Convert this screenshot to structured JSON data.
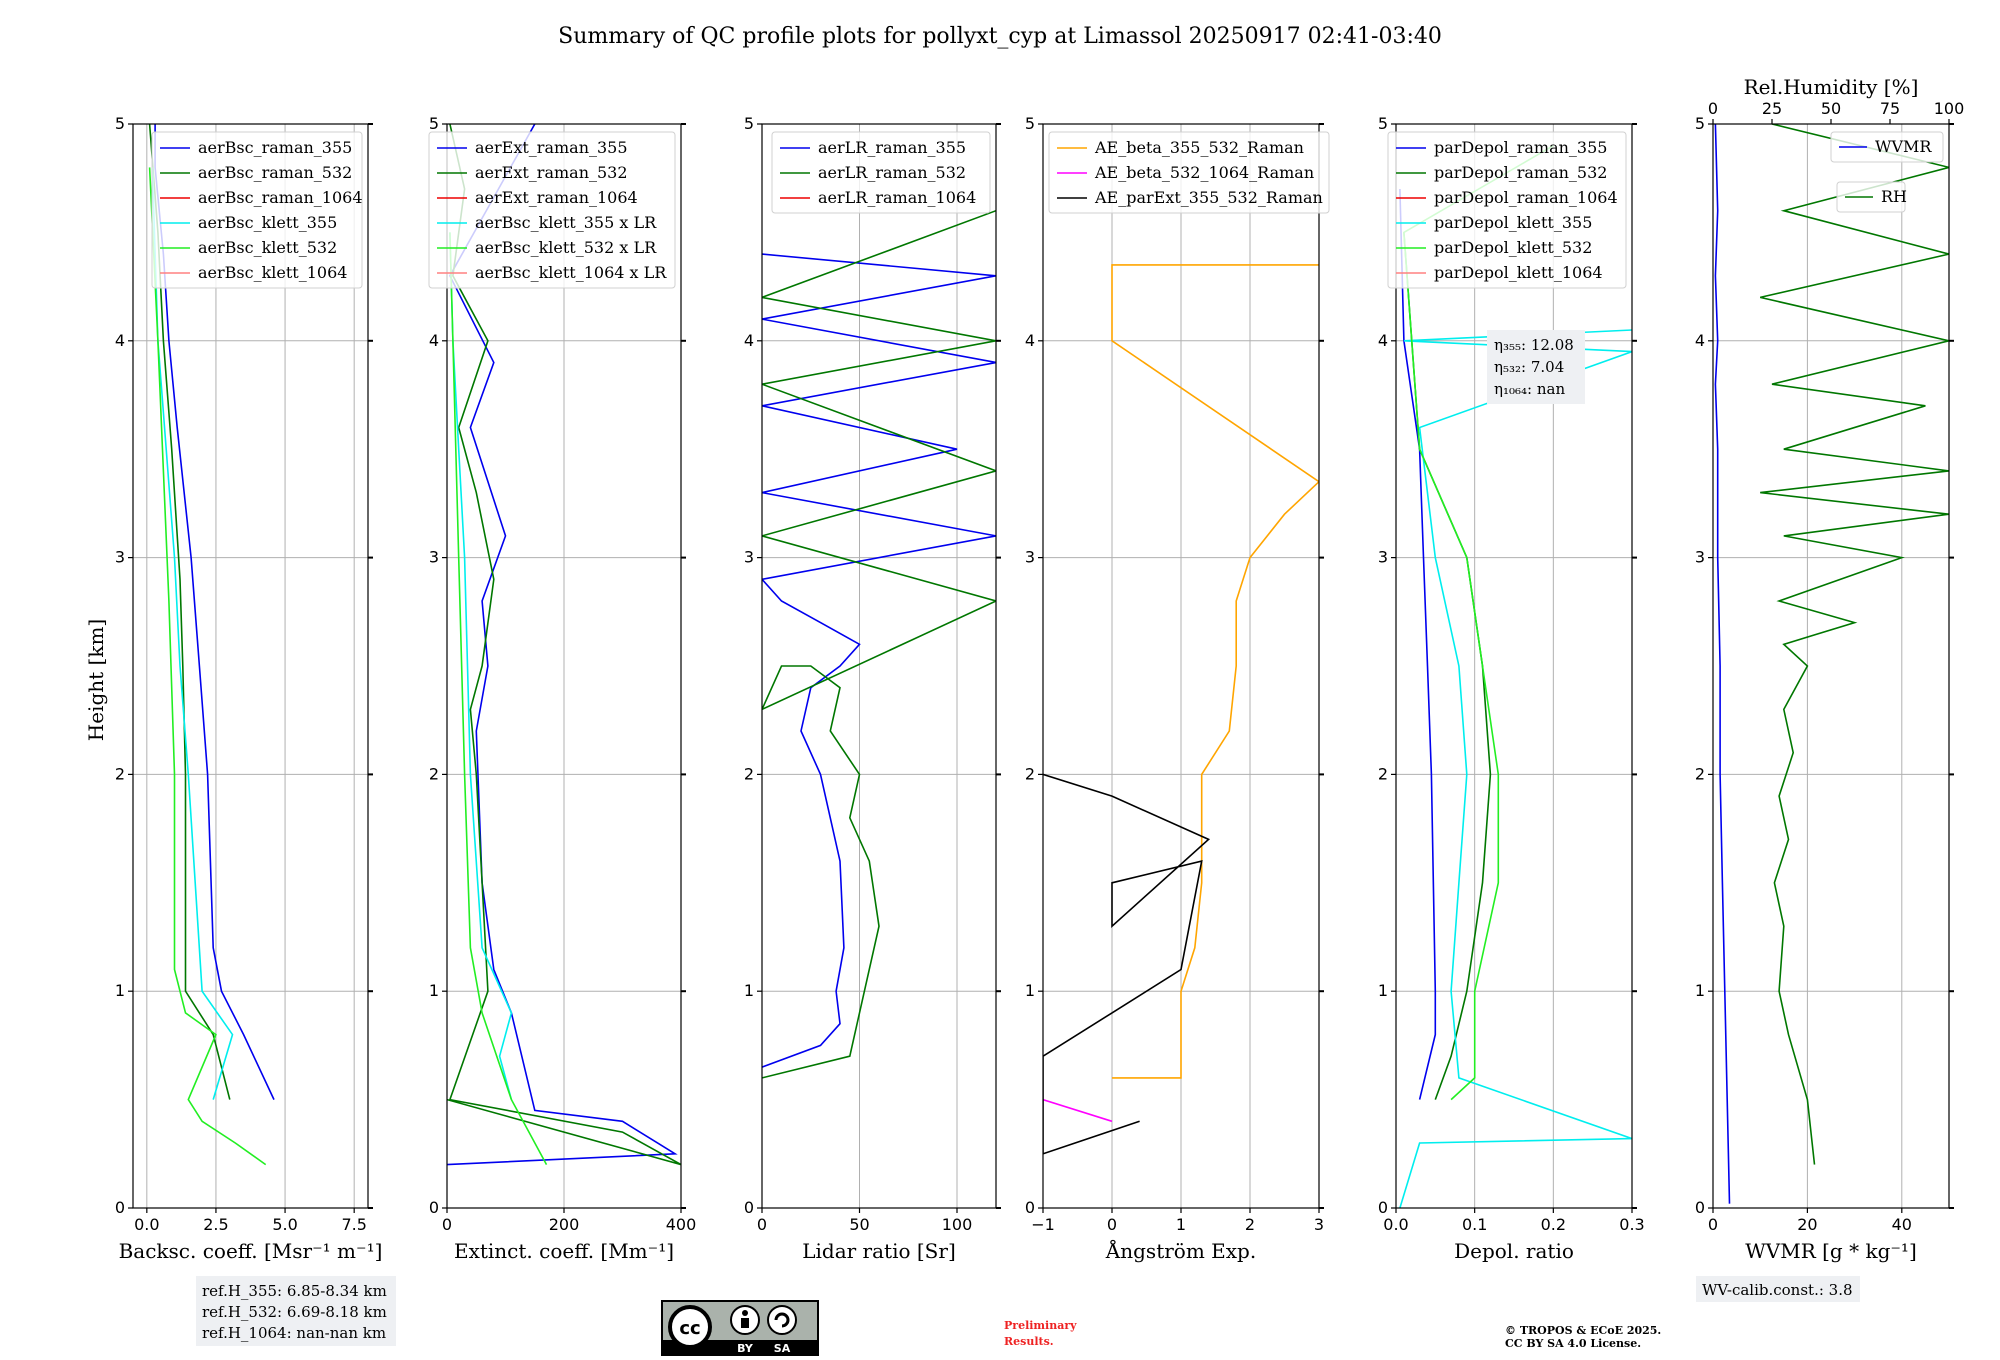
{
  "page": {
    "title": "Summary of QC profile plots for pollyxt_cyp at Limassol 20250917 02:41-03:40"
  },
  "colors": {
    "blue": "#0000ee",
    "green": "#007700",
    "red": "#ee0000",
    "cyan": "#00eeee",
    "lime": "#22ee22",
    "pink": "#ff8080",
    "orange": "#ffa500",
    "magenta": "#ff00ff",
    "black": "#000000"
  },
  "chart_data": [
    {
      "type": "line",
      "name": "backscatter",
      "xlabel": "Backsc. coeff. [Msr⁻¹ m⁻¹]",
      "ylabel": "Height [km]",
      "xlim": [
        -0.5,
        8.0
      ],
      "ylim": [
        0,
        5
      ],
      "xticks": [
        0,
        2.5,
        5,
        7.5
      ],
      "xtick_labels": [
        "0.0",
        "2.5",
        "5.0",
        "7.5"
      ],
      "yticks": [
        0,
        1,
        2,
        3,
        4,
        5
      ],
      "ytick_labels": [
        "0",
        "1",
        "2",
        "3",
        "4",
        "5"
      ],
      "grid": true,
      "legend_position": "top-right",
      "series": [
        {
          "name": "aerBsc_raman_355",
          "color": "#0000ee",
          "x": [
            4.6,
            3.5,
            2.7,
            2.4,
            2.2,
            1.9,
            1.6,
            1.1,
            0.8,
            0.6,
            0.3,
            0.3
          ],
          "y": [
            0.5,
            0.8,
            1.0,
            1.2,
            2.0,
            2.5,
            3.0,
            3.6,
            4.0,
            4.4,
            4.8,
            5.0
          ]
        },
        {
          "name": "aerBsc_raman_532",
          "color": "#007700",
          "x": [
            3.0,
            2.4,
            1.4,
            1.4,
            1.3,
            1.2,
            0.9,
            0.6,
            0.4,
            0.1
          ],
          "y": [
            0.5,
            0.8,
            1.0,
            2.0,
            2.5,
            2.9,
            3.5,
            4.0,
            4.5,
            5.0
          ]
        },
        {
          "name": "aerBsc_raman_1064",
          "color": "#ee0000",
          "x": [],
          "y": []
        },
        {
          "name": "aerBsc_klett_355",
          "color": "#00eeee",
          "x": [
            2.4,
            3.1,
            2.0,
            1.5,
            1.2,
            1.0,
            0.7,
            0.4,
            0.2
          ],
          "y": [
            0.5,
            0.8,
            1.0,
            2.0,
            2.5,
            3.0,
            3.5,
            4.0,
            4.8
          ]
        },
        {
          "name": "aerBsc_klett_532",
          "color": "#22ee22",
          "x": [
            4.3,
            3.2,
            2.0,
            1.5,
            2.5,
            1.4,
            1.0,
            1.0,
            0.8,
            0.4,
            0.1
          ],
          "y": [
            0.2,
            0.3,
            0.4,
            0.5,
            0.8,
            0.9,
            1.1,
            2.0,
            2.8,
            4.0,
            4.8
          ]
        },
        {
          "name": "aerBsc_klett_1064",
          "color": "#ff8080",
          "x": [],
          "y": []
        }
      ]
    },
    {
      "type": "line",
      "name": "extinction",
      "xlabel": "Extinct. coeff. [Mm⁻¹]",
      "ylabel": "",
      "xlim": [
        0,
        400
      ],
      "ylim": [
        0,
        5
      ],
      "xticks": [
        0,
        200,
        400
      ],
      "xtick_labels": [
        "0",
        "200",
        "400"
      ],
      "yticks": [
        0,
        1,
        2,
        3,
        4,
        5
      ],
      "ytick_labels": [
        "0",
        "1",
        "2",
        "3",
        "4",
        "5"
      ],
      "grid": true,
      "legend_position": "top-right",
      "series": [
        {
          "name": "aerExt_raman_355",
          "color": "#0000ee",
          "x": [
            0,
            390,
            300,
            150,
            110,
            80,
            60,
            50,
            70,
            60,
            100,
            40,
            80,
            5,
            150
          ],
          "y": [
            0.2,
            0.25,
            0.4,
            0.45,
            0.9,
            1.1,
            1.5,
            2.2,
            2.5,
            2.8,
            3.1,
            3.6,
            3.9,
            4.3,
            5.0
          ]
        },
        {
          "name": "aerExt_raman_532",
          "color": "#007700",
          "x": [
            0,
            400,
            300,
            5,
            70,
            60,
            50,
            40,
            60,
            80,
            50,
            20,
            70,
            10,
            30,
            5
          ],
          "y": [
            0.5,
            0.2,
            0.35,
            0.5,
            1.0,
            1.5,
            2.0,
            2.3,
            2.5,
            2.9,
            3.3,
            3.6,
            4.0,
            4.3,
            4.7,
            5.0
          ]
        },
        {
          "name": "aerExt_raman_1064",
          "color": "#ee0000",
          "x": [],
          "y": []
        },
        {
          "name": "aerBsc_klett_355 x LR",
          "color": "#00eeee",
          "x": [
            110,
            90,
            110,
            60,
            40,
            35,
            30,
            20,
            10,
            5
          ],
          "y": [
            0.5,
            0.7,
            0.9,
            1.2,
            2.0,
            2.5,
            3.0,
            3.5,
            4.0,
            4.5
          ]
        },
        {
          "name": "aerBsc_klett_532 x LR",
          "color": "#22ee22",
          "x": [
            170,
            110,
            60,
            40,
            30,
            20,
            10,
            5
          ],
          "y": [
            0.2,
            0.5,
            0.9,
            1.2,
            2.0,
            3.0,
            4.0,
            4.5
          ]
        },
        {
          "name": "aerBsc_klett_1064 x LR",
          "color": "#ff8080",
          "x": [],
          "y": []
        }
      ]
    },
    {
      "type": "line",
      "name": "lidar_ratio",
      "xlabel": "Lidar ratio [Sr]",
      "ylabel": "",
      "xlim": [
        0,
        120
      ],
      "ylim": [
        0,
        5
      ],
      "xticks": [
        0,
        50,
        100
      ],
      "xtick_labels": [
        "0",
        "50",
        "100"
      ],
      "yticks": [
        0,
        1,
        2,
        3,
        4,
        5
      ],
      "ytick_labels": [
        "0",
        "1",
        "2",
        "3",
        "4",
        "5"
      ],
      "grid": true,
      "legend_position": "top-right",
      "series": [
        {
          "name": "aerLR_raman_355",
          "color": "#0000ee",
          "x": [
            0,
            30,
            40,
            38,
            42,
            40,
            30,
            20,
            25,
            40,
            50,
            30,
            10,
            0,
            120,
            0,
            100,
            0,
            120,
            0,
            120,
            0
          ],
          "y": [
            0.65,
            0.75,
            0.85,
            1.0,
            1.2,
            1.6,
            2.0,
            2.2,
            2.4,
            2.5,
            2.6,
            2.7,
            2.8,
            2.9,
            3.1,
            3.3,
            3.5,
            3.7,
            3.9,
            4.1,
            4.3,
            4.4
          ]
        },
        {
          "name": "aerLR_raman_532",
          "color": "#007700",
          "x": [
            0,
            45,
            50,
            60,
            55,
            45,
            50,
            35,
            40,
            25,
            10,
            0,
            120,
            0,
            120,
            0,
            120,
            0,
            120
          ],
          "y": [
            0.6,
            0.7,
            0.9,
            1.3,
            1.6,
            1.8,
            2.0,
            2.2,
            2.4,
            2.5,
            2.5,
            2.3,
            2.8,
            3.1,
            3.4,
            3.8,
            4.0,
            4.2,
            4.6
          ]
        },
        {
          "name": "aerLR_raman_1064",
          "color": "#ee0000",
          "x": [],
          "y": []
        }
      ]
    },
    {
      "type": "line",
      "name": "angstrom",
      "xlabel": "Ångström Exp.",
      "ylabel": "",
      "xlim": [
        -1,
        3
      ],
      "ylim": [
        0,
        5
      ],
      "xticks": [
        -1,
        0,
        1,
        2,
        3
      ],
      "xtick_labels": [
        "−1",
        "0",
        "1",
        "2",
        "3"
      ],
      "yticks": [
        0,
        1,
        2,
        3,
        4,
        5
      ],
      "ytick_labels": [
        "0",
        "1",
        "2",
        "3",
        "4",
        "5"
      ],
      "grid": true,
      "legend_position": "top-left",
      "series": [
        {
          "name": "AE_beta_355_532_Raman",
          "color": "#ffa500",
          "x": [
            0,
            1.0,
            1.0,
            1.2,
            1.3,
            1.3,
            1.7,
            1.8,
            1.8,
            2.0,
            2.5,
            3.0,
            0,
            0,
            3.0
          ],
          "y": [
            0.6,
            0.6,
            1.0,
            1.2,
            1.5,
            2.0,
            2.2,
            2.5,
            2.8,
            3.0,
            3.2,
            3.35,
            4.0,
            4.35,
            4.35
          ]
        },
        {
          "name": "AE_beta_532_1064_Raman",
          "color": "#ff00ff",
          "x": [
            -1,
            0
          ],
          "y": [
            0.5,
            0.4
          ]
        },
        {
          "name": "AE_parExt_355_532_Raman",
          "color": "#000000",
          "x": [
            -1,
            0.4,
            -1,
            -1,
            0,
            1.0,
            1.3,
            0,
            0,
            1.4,
            0,
            -1
          ],
          "y": [
            0.25,
            0.4,
            0.25,
            0.7,
            0.9,
            1.1,
            1.6,
            1.5,
            1.3,
            1.7,
            1.9,
            2.0
          ]
        }
      ]
    },
    {
      "type": "line",
      "name": "depol",
      "xlabel": "Depol. ratio",
      "ylabel": "",
      "xlim": [
        0,
        0.3
      ],
      "ylim": [
        0,
        5
      ],
      "xticks": [
        0,
        0.1,
        0.2,
        0.3
      ],
      "xtick_labels": [
        "0.0",
        "0.1",
        "0.2",
        "0.3"
      ],
      "yticks": [
        0,
        1,
        2,
        3,
        4,
        5
      ],
      "ytick_labels": [
        "0",
        "1",
        "2",
        "3",
        "4",
        "5"
      ],
      "grid": true,
      "legend_position": "top-right",
      "series": [
        {
          "name": "parDepol_raman_355",
          "color": "#0000ee",
          "x": [
            0.03,
            0.05,
            0.05,
            0.045,
            0.04,
            0.035,
            0.03,
            0.01,
            0.005
          ],
          "y": [
            0.5,
            0.8,
            1.0,
            2.0,
            2.5,
            3.0,
            3.5,
            4.0,
            4.7
          ]
        },
        {
          "name": "parDepol_raman_532",
          "color": "#007700",
          "x": [
            0.05,
            0.07,
            0.09,
            0.11,
            0.12,
            0.11,
            0.09,
            0.03,
            0.01
          ],
          "y": [
            0.5,
            0.7,
            1.0,
            1.5,
            2.0,
            2.5,
            3.0,
            3.5,
            4.5
          ]
        },
        {
          "name": "parDepol_raman_1064",
          "color": "#ee0000",
          "x": [],
          "y": []
        },
        {
          "name": "parDepol_klett_355",
          "color": "#00eeee",
          "x": [
            0.005,
            0.03,
            0.3,
            0.08,
            0.07,
            0.08,
            0.09,
            0.08,
            0.05,
            0.03,
            0.3,
            0.01,
            0.3
          ],
          "y": [
            0,
            0.3,
            0.32,
            0.6,
            1.0,
            1.5,
            2.0,
            2.5,
            3.0,
            3.6,
            3.95,
            4.0,
            4.05
          ]
        },
        {
          "name": "parDepol_klett_532",
          "color": "#22ee22",
          "x": [
            0.07,
            0.1,
            0.1,
            0.13,
            0.13,
            0.11,
            0.09,
            0.03,
            0.01,
            0.2
          ],
          "y": [
            0.5,
            0.6,
            1.0,
            1.5,
            2.0,
            2.5,
            3.0,
            3.5,
            4.5,
            4.9
          ]
        },
        {
          "name": "parDepol_klett_1064",
          "color": "#ff8080",
          "x": [],
          "y": []
        }
      ]
    },
    {
      "type": "line",
      "name": "wvmr_rh",
      "xlabel": "WVMR [g * kg⁻¹]",
      "ylabel": "",
      "x2label": "Rel.Humidity [%]",
      "xlim": [
        0,
        50
      ],
      "ylim": [
        0,
        5
      ],
      "x2lim": [
        0,
        100
      ],
      "xticks": [
        0,
        20,
        40
      ],
      "xtick_labels": [
        "0",
        "20",
        "40"
      ],
      "x2ticks": [
        0,
        25,
        50,
        75,
        100
      ],
      "x2tick_labels": [
        "0",
        "25",
        "50",
        "75",
        "100"
      ],
      "yticks": [
        0,
        1,
        2,
        3,
        4,
        5
      ],
      "ytick_labels": [
        "0",
        "1",
        "2",
        "3",
        "4",
        "5"
      ],
      "grid": true,
      "legend_position": "top-right",
      "series": [
        {
          "name": "WVMR",
          "color": "#0000ee",
          "x": [
            3.5,
            3.0,
            2.5,
            2.0,
            1.5,
            1.5,
            1.0,
            1.0,
            0.5,
            1.0,
            0.5,
            1.0,
            0.5
          ],
          "y": [
            0.02,
            0.5,
            1.0,
            1.5,
            2.0,
            2.5,
            3.0,
            3.5,
            3.8,
            4.0,
            4.3,
            4.6,
            5.0
          ]
        },
        {
          "name": "RH",
          "color": "#007700",
          "axis": "x2",
          "x": [
            43,
            40,
            32,
            28,
            30,
            26,
            32,
            28,
            34,
            30,
            40,
            30,
            60,
            28,
            80,
            30,
            100,
            20,
            100,
            30,
            90,
            25,
            100,
            20,
            100,
            30,
            100,
            25
          ],
          "y": [
            0.2,
            0.5,
            0.8,
            1.0,
            1.3,
            1.5,
            1.7,
            1.9,
            2.1,
            2.3,
            2.5,
            2.6,
            2.7,
            2.8,
            3.0,
            3.1,
            3.2,
            3.3,
            3.4,
            3.5,
            3.7,
            3.8,
            4.0,
            4.2,
            4.4,
            4.6,
            4.8,
            5.0
          ]
        }
      ]
    }
  ],
  "annotations": {
    "eta_355": "η₃₅₅: 12.08",
    "eta_532": "η₅₃₂: 7.04",
    "eta_1064": "η₁₀₆₄: nan",
    "ref_355": "ref.H_355: 6.85-8.34 km",
    "ref_532": "ref.H_532: 6.69-8.18 km",
    "ref_1064": "ref.H_1064: nan-nan km",
    "wv_calib": "WV-calib.const.: 3.8",
    "preliminary_1": "Preliminary",
    "preliminary_2": "Results.",
    "copyright_1": "© TROPOS & ECoE 2025.",
    "copyright_2": "CC BY SA 4.0 License.",
    "cc_by": "BY",
    "cc_sa": "SA",
    "cc_logo": "cc-by-sa-icon"
  }
}
